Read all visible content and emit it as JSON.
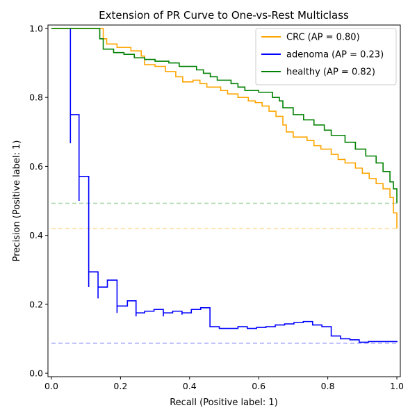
{
  "chart_data": {
    "type": "line",
    "title": "Extension of PR Curve to One-vs-Rest Multiclass",
    "xlabel": "Recall (Positive label: 1)",
    "ylabel": "Precision (Positive label: 1)",
    "xlim": [
      -0.01,
      1.01
    ],
    "ylim": [
      -0.01,
      1.01
    ],
    "xticks": [
      "0.0",
      "0.2",
      "0.4",
      "0.6",
      "0.8",
      "1.0"
    ],
    "yticks": [
      "0.0",
      "0.2",
      "0.4",
      "0.6",
      "0.8",
      "1.0"
    ],
    "grid": false,
    "legend_position": "top-right",
    "series": [
      {
        "name": "CRC (AP = 0.80)",
        "color": "#ffa500",
        "chance_level": 0.42,
        "points": [
          [
            0.0,
            1.0
          ],
          [
            0.15,
            1.0
          ],
          [
            0.15,
            0.97
          ],
          [
            0.16,
            0.97
          ],
          [
            0.16,
            0.955
          ],
          [
            0.19,
            0.955
          ],
          [
            0.19,
            0.945
          ],
          [
            0.23,
            0.945
          ],
          [
            0.23,
            0.935
          ],
          [
            0.26,
            0.935
          ],
          [
            0.26,
            0.92
          ],
          [
            0.27,
            0.92
          ],
          [
            0.27,
            0.895
          ],
          [
            0.3,
            0.895
          ],
          [
            0.3,
            0.89
          ],
          [
            0.33,
            0.89
          ],
          [
            0.33,
            0.875
          ],
          [
            0.36,
            0.875
          ],
          [
            0.36,
            0.86
          ],
          [
            0.38,
            0.86
          ],
          [
            0.38,
            0.845
          ],
          [
            0.41,
            0.845
          ],
          [
            0.41,
            0.85
          ],
          [
            0.43,
            0.85
          ],
          [
            0.43,
            0.84
          ],
          [
            0.45,
            0.84
          ],
          [
            0.45,
            0.83
          ],
          [
            0.49,
            0.83
          ],
          [
            0.49,
            0.82
          ],
          [
            0.51,
            0.82
          ],
          [
            0.51,
            0.81
          ],
          [
            0.54,
            0.81
          ],
          [
            0.54,
            0.8
          ],
          [
            0.57,
            0.8
          ],
          [
            0.57,
            0.79
          ],
          [
            0.59,
            0.79
          ],
          [
            0.59,
            0.785
          ],
          [
            0.61,
            0.785
          ],
          [
            0.61,
            0.775
          ],
          [
            0.63,
            0.775
          ],
          [
            0.63,
            0.76
          ],
          [
            0.65,
            0.76
          ],
          [
            0.65,
            0.745
          ],
          [
            0.67,
            0.745
          ],
          [
            0.67,
            0.72
          ],
          [
            0.68,
            0.72
          ],
          [
            0.68,
            0.7
          ],
          [
            0.7,
            0.7
          ],
          [
            0.7,
            0.685
          ],
          [
            0.74,
            0.685
          ],
          [
            0.74,
            0.675
          ],
          [
            0.76,
            0.675
          ],
          [
            0.76,
            0.66
          ],
          [
            0.78,
            0.66
          ],
          [
            0.78,
            0.65
          ],
          [
            0.81,
            0.65
          ],
          [
            0.81,
            0.635
          ],
          [
            0.83,
            0.635
          ],
          [
            0.83,
            0.62
          ],
          [
            0.85,
            0.62
          ],
          [
            0.85,
            0.61
          ],
          [
            0.88,
            0.61
          ],
          [
            0.88,
            0.595
          ],
          [
            0.9,
            0.595
          ],
          [
            0.9,
            0.58
          ],
          [
            0.92,
            0.58
          ],
          [
            0.92,
            0.565
          ],
          [
            0.94,
            0.565
          ],
          [
            0.94,
            0.55
          ],
          [
            0.96,
            0.55
          ],
          [
            0.96,
            0.535
          ],
          [
            0.98,
            0.535
          ],
          [
            0.98,
            0.51
          ],
          [
            0.99,
            0.51
          ],
          [
            0.99,
            0.465
          ],
          [
            1.0,
            0.465
          ],
          [
            1.0,
            0.42
          ]
        ]
      },
      {
        "name": "adenoma (AP = 0.23)",
        "color": "#0000ff",
        "chance_level": 0.087,
        "points": [
          [
            0.055,
            0.667
          ],
          [
            0.055,
            1.0
          ],
          [
            0.055,
            0.75
          ],
          [
            0.08,
            0.75
          ],
          [
            0.08,
            0.5
          ],
          [
            0.08,
            0.571
          ],
          [
            0.108,
            0.571
          ],
          [
            0.108,
            0.25
          ],
          [
            0.108,
            0.294
          ],
          [
            0.135,
            0.294
          ],
          [
            0.135,
            0.217
          ],
          [
            0.135,
            0.25
          ],
          [
            0.162,
            0.25
          ],
          [
            0.162,
            0.27
          ],
          [
            0.19,
            0.27
          ],
          [
            0.19,
            0.175
          ],
          [
            0.19,
            0.195
          ],
          [
            0.22,
            0.195
          ],
          [
            0.22,
            0.21
          ],
          [
            0.245,
            0.21
          ],
          [
            0.245,
            0.165
          ],
          [
            0.245,
            0.175
          ],
          [
            0.27,
            0.175
          ],
          [
            0.27,
            0.18
          ],
          [
            0.297,
            0.18
          ],
          [
            0.297,
            0.185
          ],
          [
            0.324,
            0.185
          ],
          [
            0.324,
            0.165
          ],
          [
            0.324,
            0.175
          ],
          [
            0.351,
            0.175
          ],
          [
            0.351,
            0.18
          ],
          [
            0.378,
            0.18
          ],
          [
            0.378,
            0.17
          ],
          [
            0.378,
            0.175
          ],
          [
            0.405,
            0.175
          ],
          [
            0.405,
            0.185
          ],
          [
            0.432,
            0.185
          ],
          [
            0.432,
            0.19
          ],
          [
            0.459,
            0.19
          ],
          [
            0.459,
            0.135
          ],
          [
            0.486,
            0.135
          ],
          [
            0.486,
            0.13
          ],
          [
            0.513,
            0.13
          ],
          [
            0.513,
            0.13
          ],
          [
            0.54,
            0.13
          ],
          [
            0.54,
            0.135
          ],
          [
            0.567,
            0.135
          ],
          [
            0.567,
            0.13
          ],
          [
            0.594,
            0.13
          ],
          [
            0.594,
            0.133
          ],
          [
            0.621,
            0.133
          ],
          [
            0.621,
            0.135
          ],
          [
            0.648,
            0.135
          ],
          [
            0.648,
            0.14
          ],
          [
            0.675,
            0.14
          ],
          [
            0.675,
            0.143
          ],
          [
            0.702,
            0.143
          ],
          [
            0.702,
            0.147
          ],
          [
            0.729,
            0.147
          ],
          [
            0.729,
            0.15
          ],
          [
            0.756,
            0.15
          ],
          [
            0.756,
            0.14
          ],
          [
            0.783,
            0.14
          ],
          [
            0.783,
            0.135
          ],
          [
            0.81,
            0.135
          ],
          [
            0.81,
            0.108
          ],
          [
            0.837,
            0.108
          ],
          [
            0.837,
            0.1
          ],
          [
            0.864,
            0.1
          ],
          [
            0.864,
            0.097
          ],
          [
            0.891,
            0.097
          ],
          [
            0.891,
            0.09
          ],
          [
            0.918,
            0.09
          ],
          [
            0.918,
            0.092
          ],
          [
            1.0,
            0.092
          ],
          [
            1.0,
            0.09
          ]
        ]
      },
      {
        "name": "healthy (AP = 0.82)",
        "color": "#008000",
        "chance_level": 0.493,
        "points": [
          [
            0.0,
            1.0
          ],
          [
            0.14,
            1.0
          ],
          [
            0.14,
            0.97
          ],
          [
            0.15,
            0.97
          ],
          [
            0.15,
            0.94
          ],
          [
            0.18,
            0.94
          ],
          [
            0.18,
            0.93
          ],
          [
            0.21,
            0.93
          ],
          [
            0.21,
            0.925
          ],
          [
            0.24,
            0.925
          ],
          [
            0.24,
            0.915
          ],
          [
            0.27,
            0.915
          ],
          [
            0.27,
            0.91
          ],
          [
            0.3,
            0.91
          ],
          [
            0.3,
            0.905
          ],
          [
            0.34,
            0.905
          ],
          [
            0.34,
            0.9
          ],
          [
            0.37,
            0.9
          ],
          [
            0.37,
            0.89
          ],
          [
            0.42,
            0.89
          ],
          [
            0.42,
            0.88
          ],
          [
            0.44,
            0.88
          ],
          [
            0.44,
            0.87
          ],
          [
            0.46,
            0.87
          ],
          [
            0.46,
            0.86
          ],
          [
            0.48,
            0.86
          ],
          [
            0.48,
            0.85
          ],
          [
            0.52,
            0.85
          ],
          [
            0.52,
            0.84
          ],
          [
            0.54,
            0.84
          ],
          [
            0.54,
            0.83
          ],
          [
            0.56,
            0.83
          ],
          [
            0.56,
            0.82
          ],
          [
            0.6,
            0.82
          ],
          [
            0.6,
            0.815
          ],
          [
            0.64,
            0.815
          ],
          [
            0.64,
            0.8
          ],
          [
            0.66,
            0.8
          ],
          [
            0.66,
            0.79
          ],
          [
            0.67,
            0.79
          ],
          [
            0.67,
            0.77
          ],
          [
            0.7,
            0.77
          ],
          [
            0.7,
            0.75
          ],
          [
            0.73,
            0.75
          ],
          [
            0.73,
            0.735
          ],
          [
            0.76,
            0.735
          ],
          [
            0.76,
            0.72
          ],
          [
            0.79,
            0.72
          ],
          [
            0.79,
            0.705
          ],
          [
            0.81,
            0.705
          ],
          [
            0.81,
            0.69
          ],
          [
            0.85,
            0.69
          ],
          [
            0.85,
            0.67
          ],
          [
            0.88,
            0.67
          ],
          [
            0.88,
            0.65
          ],
          [
            0.91,
            0.65
          ],
          [
            0.91,
            0.63
          ],
          [
            0.94,
            0.63
          ],
          [
            0.94,
            0.61
          ],
          [
            0.96,
            0.61
          ],
          [
            0.96,
            0.585
          ],
          [
            0.98,
            0.585
          ],
          [
            0.98,
            0.555
          ],
          [
            0.99,
            0.555
          ],
          [
            0.99,
            0.535
          ],
          [
            1.0,
            0.535
          ],
          [
            1.0,
            0.493
          ]
        ]
      }
    ]
  }
}
